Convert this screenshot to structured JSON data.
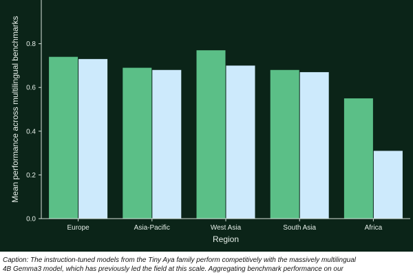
{
  "chart_data": {
    "type": "bar",
    "title": "",
    "xlabel": "Region",
    "ylabel": "Mean performance across multilingual benchmarks",
    "categories": [
      "Europe",
      "Asia-Pacific",
      "West Asia",
      "South Asia",
      "Africa"
    ],
    "series": [
      {
        "values": [
          0.74,
          0.69,
          0.77,
          0.68,
          0.55
        ]
      },
      {
        "values": [
          0.73,
          0.68,
          0.7,
          0.67,
          0.31
        ]
      }
    ],
    "y_ticks": [
      "0.0",
      "0.2",
      "0.4",
      "0.6",
      "0.8"
    ],
    "ylim": [
      0,
      1.0
    ],
    "grid": false,
    "colors": [
      "#5bbf87",
      "#cdeafc"
    ]
  },
  "caption": {
    "line1": "Caption: The instruction-tuned models from the Tiny Aya family perform competitively with the massively multilingual",
    "line2": "4B Gemma3 model, which has previously led the field at this scale. Aggregating benchmark performance on our"
  }
}
